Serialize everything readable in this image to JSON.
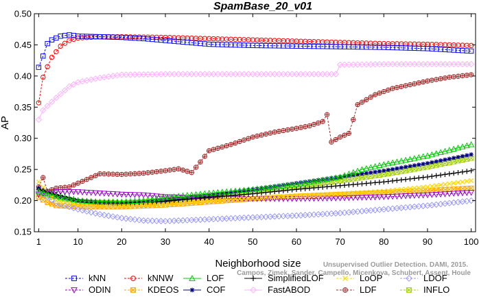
{
  "chart_data": {
    "type": "line",
    "title": "SpamBase_20_v01",
    "xlabel": "Neighborhood size",
    "ylabel": "AP",
    "xlim": [
      0,
      101
    ],
    "ylim": [
      0.15,
      0.5
    ],
    "xticks": [
      1,
      10,
      20,
      30,
      40,
      50,
      60,
      70,
      80,
      90,
      100
    ],
    "yticks": [
      0.15,
      0.2,
      0.25,
      0.3,
      0.35,
      0.4,
      0.45,
      0.5
    ],
    "xtick_labels": [
      "1",
      "10",
      "20",
      "30",
      "40",
      "50",
      "60",
      "70",
      "80",
      "90",
      "100"
    ],
    "ytick_labels": [
      "0.15",
      "0.20",
      "0.25",
      "0.30",
      "0.35",
      "0.40",
      "0.45",
      "0.50"
    ],
    "grid": false,
    "legend_position": "bottom",
    "watermark": "Campos, Zimek, Sander, Campello, Micenkova, Schubert, Assent, Houle",
    "watermark_partial": "Unsupervised Outlier Detection. DAMI, 2015.",
    "series": [
      {
        "name": "kNN",
        "color": "#0000ff",
        "marker": "square",
        "dashed": true,
        "points": [
          [
            1,
            0.414
          ],
          [
            2,
            0.432
          ],
          [
            3,
            0.452
          ],
          [
            4,
            0.458
          ],
          [
            6,
            0.464
          ],
          [
            8,
            0.466
          ],
          [
            10,
            0.464
          ],
          [
            15,
            0.463
          ],
          [
            20,
            0.462
          ],
          [
            25,
            0.46
          ],
          [
            30,
            0.457
          ],
          [
            35,
            0.454
          ],
          [
            40,
            0.451
          ],
          [
            50,
            0.449
          ],
          [
            60,
            0.448
          ],
          [
            70,
            0.447
          ],
          [
            80,
            0.446
          ],
          [
            90,
            0.444
          ],
          [
            100,
            0.44
          ]
        ]
      },
      {
        "name": "kNNW",
        "color": "#ff0000",
        "marker": "circle",
        "dashed": true,
        "points": [
          [
            1,
            0.357
          ],
          [
            2,
            0.398
          ],
          [
            3,
            0.415
          ],
          [
            4,
            0.43
          ],
          [
            6,
            0.448
          ],
          [
            8,
            0.457
          ],
          [
            10,
            0.461
          ],
          [
            15,
            0.463
          ],
          [
            20,
            0.463
          ],
          [
            30,
            0.462
          ],
          [
            40,
            0.46
          ],
          [
            50,
            0.458
          ],
          [
            60,
            0.456
          ],
          [
            70,
            0.454
          ],
          [
            80,
            0.452
          ],
          [
            90,
            0.451
          ],
          [
            100,
            0.449
          ]
        ]
      },
      {
        "name": "LOF",
        "color": "#00cc00",
        "marker": "triangle-up",
        "dashed": false,
        "points": [
          [
            1,
            0.215
          ],
          [
            5,
            0.207
          ],
          [
            10,
            0.2
          ],
          [
            15,
            0.198
          ],
          [
            20,
            0.198
          ],
          [
            25,
            0.2
          ],
          [
            30,
            0.205
          ],
          [
            40,
            0.212
          ],
          [
            50,
            0.218
          ],
          [
            60,
            0.226
          ],
          [
            70,
            0.238
          ],
          [
            75,
            0.25
          ],
          [
            80,
            0.258
          ],
          [
            90,
            0.272
          ],
          [
            100,
            0.29
          ]
        ]
      },
      {
        "name": "SimplifiedLOF",
        "color": "#000000",
        "marker": "plus",
        "dashed": false,
        "points": [
          [
            1,
            0.218
          ],
          [
            5,
            0.21
          ],
          [
            10,
            0.201
          ],
          [
            15,
            0.197
          ],
          [
            20,
            0.196
          ],
          [
            25,
            0.197
          ],
          [
            30,
            0.199
          ],
          [
            40,
            0.205
          ],
          [
            50,
            0.211
          ],
          [
            60,
            0.218
          ],
          [
            70,
            0.224
          ],
          [
            80,
            0.23
          ],
          [
            90,
            0.238
          ],
          [
            100,
            0.248
          ]
        ]
      },
      {
        "name": "LoOP",
        "color": "#ffd700",
        "marker": "cross",
        "dashed": true,
        "points": [
          [
            1,
            0.23
          ],
          [
            3,
            0.212
          ],
          [
            5,
            0.2
          ],
          [
            10,
            0.193
          ],
          [
            20,
            0.192
          ],
          [
            30,
            0.194
          ],
          [
            40,
            0.2
          ],
          [
            50,
            0.204
          ],
          [
            60,
            0.208
          ],
          [
            70,
            0.211
          ],
          [
            80,
            0.215
          ],
          [
            90,
            0.222
          ],
          [
            100,
            0.232
          ]
        ]
      },
      {
        "name": "LDOF",
        "color": "#9999ff",
        "marker": "diamond",
        "dashed": true,
        "points": [
          [
            1,
            0.215
          ],
          [
            5,
            0.196
          ],
          [
            10,
            0.186
          ],
          [
            15,
            0.178
          ],
          [
            20,
            0.172
          ],
          [
            25,
            0.168
          ],
          [
            30,
            0.167
          ],
          [
            40,
            0.17
          ],
          [
            50,
            0.173
          ],
          [
            60,
            0.176
          ],
          [
            70,
            0.18
          ],
          [
            80,
            0.186
          ],
          [
            90,
            0.192
          ],
          [
            100,
            0.2
          ]
        ]
      },
      {
        "name": "ODIN",
        "color": "#9900cc",
        "marker": "triangle-down",
        "dashed": true,
        "points": [
          [
            1,
            0.21
          ],
          [
            5,
            0.214
          ],
          [
            10,
            0.214
          ],
          [
            15,
            0.212
          ],
          [
            20,
            0.21
          ],
          [
            25,
            0.209
          ],
          [
            30,
            0.206
          ],
          [
            40,
            0.204
          ],
          [
            50,
            0.203
          ],
          [
            60,
            0.203
          ],
          [
            70,
            0.204
          ],
          [
            80,
            0.206
          ],
          [
            90,
            0.209
          ],
          [
            100,
            0.213
          ]
        ]
      },
      {
        "name": "KDEOS",
        "color": "#ffa500",
        "marker": "square-x",
        "dashed": true,
        "points": [
          [
            1,
            0.205
          ],
          [
            3,
            0.197
          ],
          [
            5,
            0.192
          ],
          [
            10,
            0.19
          ],
          [
            20,
            0.19
          ],
          [
            30,
            0.193
          ],
          [
            40,
            0.198
          ],
          [
            50,
            0.203
          ],
          [
            60,
            0.207
          ],
          [
            70,
            0.21
          ],
          [
            80,
            0.213
          ],
          [
            90,
            0.216
          ],
          [
            100,
            0.22
          ]
        ]
      },
      {
        "name": "COF",
        "color": "#000080",
        "marker": "asterisk",
        "dashed": false,
        "points": [
          [
            1,
            0.22
          ],
          [
            5,
            0.208
          ],
          [
            10,
            0.2
          ],
          [
            15,
            0.197
          ],
          [
            20,
            0.196
          ],
          [
            30,
            0.2
          ],
          [
            40,
            0.208
          ],
          [
            50,
            0.218
          ],
          [
            60,
            0.228
          ],
          [
            70,
            0.238
          ],
          [
            80,
            0.248
          ],
          [
            90,
            0.26
          ],
          [
            100,
            0.274
          ]
        ]
      },
      {
        "name": "FastABOD",
        "color": "#ffb0ff",
        "marker": "diamond",
        "dashed": false,
        "points": [
          [
            1,
            0.33
          ],
          [
            2,
            0.345
          ],
          [
            3,
            0.352
          ],
          [
            5,
            0.365
          ],
          [
            8,
            0.383
          ],
          [
            10,
            0.39
          ],
          [
            15,
            0.397
          ],
          [
            20,
            0.402
          ],
          [
            30,
            0.403
          ],
          [
            40,
            0.403
          ],
          [
            50,
            0.403
          ],
          [
            60,
            0.403
          ],
          [
            69,
            0.403
          ],
          [
            70,
            0.418
          ],
          [
            80,
            0.419
          ],
          [
            90,
            0.419
          ],
          [
            100,
            0.419
          ]
        ]
      },
      {
        "name": "LDF",
        "color": "#a52a2a",
        "marker": "circle-plus",
        "dashed": true,
        "points": [
          [
            1,
            0.222
          ],
          [
            2,
            0.237
          ],
          [
            3,
            0.215
          ],
          [
            5,
            0.22
          ],
          [
            8,
            0.222
          ],
          [
            10,
            0.228
          ],
          [
            15,
            0.243
          ],
          [
            20,
            0.242
          ],
          [
            25,
            0.244
          ],
          [
            30,
            0.248
          ],
          [
            33,
            0.251
          ],
          [
            36,
            0.245
          ],
          [
            38,
            0.262
          ],
          [
            40,
            0.28
          ],
          [
            45,
            0.29
          ],
          [
            50,
            0.302
          ],
          [
            55,
            0.31
          ],
          [
            60,
            0.316
          ],
          [
            63,
            0.32
          ],
          [
            66,
            0.327
          ],
          [
            67,
            0.338
          ],
          [
            68,
            0.294
          ],
          [
            70,
            0.302
          ],
          [
            72,
            0.308
          ],
          [
            73,
            0.33
          ],
          [
            74,
            0.354
          ],
          [
            78,
            0.37
          ],
          [
            82,
            0.38
          ],
          [
            86,
            0.386
          ],
          [
            90,
            0.392
          ],
          [
            95,
            0.398
          ],
          [
            100,
            0.402
          ]
        ]
      },
      {
        "name": "INFLO",
        "color": "#a0d000",
        "marker": "hourglass",
        "dashed": true,
        "points": [
          [
            1,
            0.21
          ],
          [
            5,
            0.205
          ],
          [
            10,
            0.198
          ],
          [
            20,
            0.196
          ],
          [
            30,
            0.2
          ],
          [
            40,
            0.207
          ],
          [
            50,
            0.214
          ],
          [
            60,
            0.222
          ],
          [
            70,
            0.232
          ],
          [
            80,
            0.242
          ],
          [
            90,
            0.254
          ],
          [
            100,
            0.268
          ]
        ]
      }
    ]
  }
}
